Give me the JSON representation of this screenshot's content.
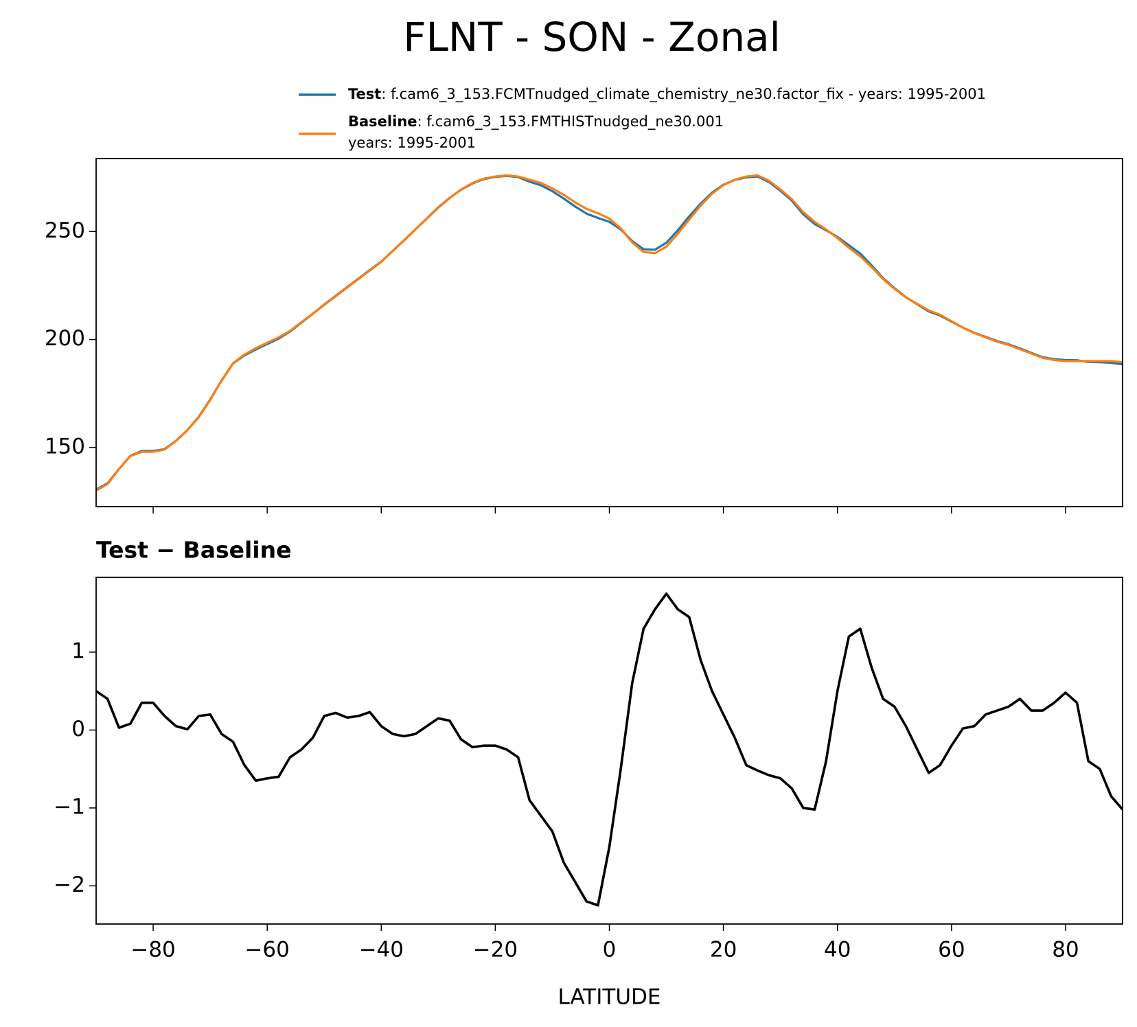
{
  "title": "FLNT - SON - Zonal",
  "chart_data": [
    {
      "type": "line",
      "x": [
        -90,
        -88,
        -86,
        -84,
        -82,
        -80,
        -78,
        -76,
        -74,
        -72,
        -70,
        -68,
        -66,
        -64,
        -62,
        -60,
        -58,
        -56,
        -54,
        -52,
        -50,
        -48,
        -46,
        -44,
        -42,
        -40,
        -38,
        -36,
        -34,
        -32,
        -30,
        -28,
        -26,
        -24,
        -22,
        -20,
        -18,
        -16,
        -14,
        -12,
        -10,
        -8,
        -6,
        -4,
        -2,
        0,
        2,
        4,
        6,
        8,
        10,
        12,
        14,
        16,
        18,
        20,
        22,
        24,
        26,
        28,
        30,
        32,
        34,
        36,
        38,
        40,
        42,
        44,
        46,
        48,
        50,
        52,
        54,
        56,
        58,
        60,
        62,
        64,
        66,
        68,
        70,
        72,
        74,
        76,
        78,
        80,
        82,
        84,
        86,
        88,
        90
      ],
      "series": [
        {
          "name": "Test",
          "description": [
            ": f.cam6_3_153.FCMTnudged_climate_chemistry_ne30.factor_fix - years: 1995-2001"
          ],
          "color": "#1f77b4",
          "values": [
            130.5,
            133.4,
            140.0,
            146.1,
            148.4,
            148.4,
            149.2,
            153.1,
            158.0,
            164.2,
            172.2,
            181.0,
            188.9,
            192.6,
            195.4,
            197.9,
            200.4,
            203.7,
            207.8,
            211.9,
            216.2,
            220.2,
            224.2,
            228.2,
            232.2,
            236.1,
            241.0,
            245.9,
            251.0,
            256.1,
            261.2,
            265.6,
            269.4,
            272.3,
            274.3,
            275.3,
            275.8,
            275.2,
            273.1,
            271.4,
            268.7,
            265.3,
            261.6,
            258.3,
            256.3,
            254.5,
            251.0,
            245.6,
            241.8,
            241.6,
            244.8,
            250.6,
            257.0,
            262.9,
            268.0,
            271.7,
            273.9,
            275.1,
            275.5,
            272.9,
            268.9,
            264.3,
            258.0,
            253.5,
            250.6,
            247.5,
            243.7,
            239.8,
            234.3,
            228.4,
            223.8,
            219.6,
            216.3,
            213.0,
            211.1,
            208.3,
            205.5,
            203.1,
            201.2,
            199.3,
            197.8,
            195.9,
            193.8,
            191.8,
            190.9,
            190.5,
            190.4,
            189.6,
            189.5,
            189.2,
            188.5
          ]
        },
        {
          "name": "Baseline",
          "description": [
            ": f.cam6_3_153.FMTHISTnudged_ne30.001",
            "years: 1995-2001"
          ],
          "color": "#ff7f0e",
          "values": [
            130,
            133,
            140,
            146,
            148,
            148,
            149,
            153,
            158,
            164,
            172,
            181,
            189,
            193,
            196,
            198.5,
            201,
            204,
            208,
            212,
            216,
            220,
            224,
            228,
            232,
            236,
            241,
            246,
            251,
            256,
            261,
            265.5,
            269.5,
            272.5,
            274.5,
            275.5,
            276,
            275.5,
            274,
            272.5,
            270,
            267,
            263.5,
            260.5,
            258.5,
            256,
            251.5,
            245,
            240.5,
            240,
            243,
            249,
            255.5,
            262,
            267.5,
            271.5,
            274,
            275.5,
            276,
            273.5,
            269.5,
            265,
            259,
            254.5,
            251,
            247,
            242.5,
            238.5,
            233.5,
            228,
            223.5,
            219.5,
            216.5,
            213.5,
            211.5,
            208.5,
            205.5,
            203,
            201,
            199,
            197.5,
            195.5,
            193.5,
            191.5,
            190.5,
            190,
            190,
            190,
            190,
            190,
            189.5
          ]
        }
      ],
      "xlim": [
        -90,
        90
      ],
      "xticks": [
        -80,
        -60,
        -40,
        -20,
        0,
        20,
        40,
        60,
        80
      ],
      "ylim": [
        122.6,
        283.8
      ],
      "yticks": [
        150,
        200,
        250
      ]
    },
    {
      "type": "line",
      "title": "Test − Baseline",
      "xlabel": "LATITUDE",
      "x": [
        -90,
        -88,
        -86,
        -84,
        -82,
        -80,
        -78,
        -76,
        -74,
        -72,
        -70,
        -68,
        -66,
        -64,
        -62,
        -60,
        -58,
        -56,
        -54,
        -52,
        -50,
        -48,
        -46,
        -44,
        -42,
        -40,
        -38,
        -36,
        -34,
        -32,
        -30,
        -28,
        -26,
        -24,
        -22,
        -20,
        -18,
        -16,
        -14,
        -12,
        -10,
        -8,
        -6,
        -4,
        -2,
        0,
        2,
        4,
        6,
        8,
        10,
        12,
        14,
        16,
        18,
        20,
        22,
        24,
        26,
        28,
        30,
        32,
        34,
        36,
        38,
        40,
        42,
        44,
        46,
        48,
        50,
        52,
        54,
        56,
        58,
        60,
        62,
        64,
        66,
        68,
        70,
        72,
        74,
        76,
        78,
        80,
        82,
        84,
        86,
        88,
        90
      ],
      "series": [
        {
          "color": "#000000",
          "values": [
            0.5,
            0.4,
            0.03,
            0.08,
            0.35,
            0.35,
            0.18,
            0.05,
            0.01,
            0.18,
            0.2,
            -0.05,
            -0.15,
            -0.45,
            -0.65,
            -0.62,
            -0.6,
            -0.35,
            -0.25,
            -0.1,
            0.18,
            0.22,
            0.16,
            0.18,
            0.23,
            0.05,
            -0.05,
            -0.08,
            -0.05,
            0.05,
            0.15,
            0.12,
            -0.12,
            -0.22,
            -0.2,
            -0.2,
            -0.25,
            -0.35,
            -0.9,
            -1.1,
            -1.3,
            -1.7,
            -1.95,
            -2.2,
            -2.25,
            -1.5,
            -0.5,
            0.6,
            1.3,
            1.55,
            1.75,
            1.55,
            1.45,
            0.9,
            0.5,
            0.2,
            -0.1,
            -0.45,
            -0.52,
            -0.58,
            -0.62,
            -0.75,
            -1.0,
            -1.02,
            -0.4,
            0.5,
            1.2,
            1.3,
            0.8,
            0.4,
            0.3,
            0.05,
            -0.25,
            -0.55,
            -0.45,
            -0.2,
            0.02,
            0.05,
            0.2,
            0.25,
            0.3,
            0.4,
            0.25,
            0.25,
            0.35,
            0.48,
            0.35,
            -0.4,
            -0.5,
            -0.85,
            -1.02
          ]
        }
      ],
      "xlim": [
        -90,
        90
      ],
      "xticks": [
        {
          "value": -80,
          "label": "−80"
        },
        {
          "value": -60,
          "label": "−60"
        },
        {
          "value": -40,
          "label": "−40"
        },
        {
          "value": -20,
          "label": "−20"
        },
        0,
        20,
        40,
        60,
        80
      ],
      "ylim": [
        -2.49,
        1.96
      ],
      "yticks": [
        {
          "value": -2,
          "label": "−2"
        },
        {
          "value": -1,
          "label": "−1"
        },
        0,
        1
      ]
    }
  ]
}
